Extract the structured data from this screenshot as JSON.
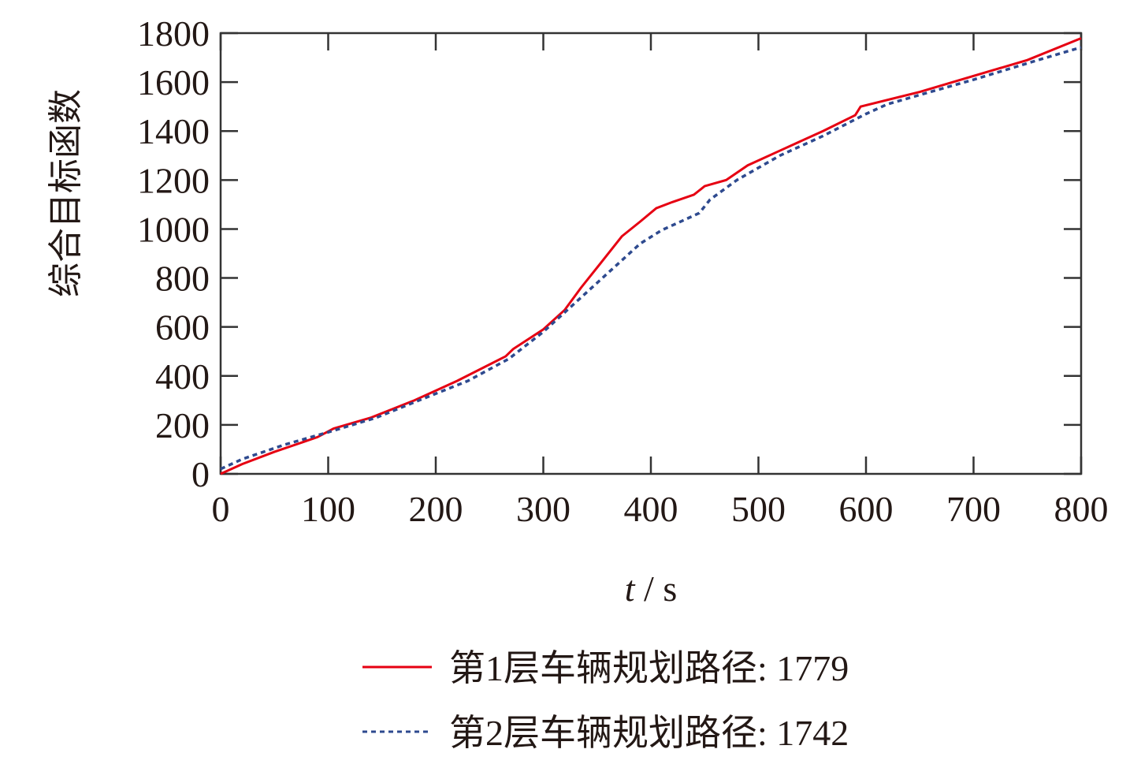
{
  "chart_data": {
    "type": "line",
    "title": "",
    "xlabel_italic": "t",
    "xlabel_rest": " / s",
    "ylabel": "综合目标函数",
    "xlim": [
      0,
      800
    ],
    "ylim": [
      0,
      1800
    ],
    "xticks": [
      0,
      100,
      200,
      300,
      400,
      500,
      600,
      700,
      800
    ],
    "yticks": [
      0,
      200,
      400,
      600,
      800,
      1000,
      1200,
      1400,
      1600,
      1800
    ],
    "grid": false,
    "legend_position": "bottom-center",
    "series": [
      {
        "name": "第1层车辆规划路径: 1779",
        "color": "#e60012",
        "style": "solid",
        "x": [
          0,
          20,
          50,
          90,
          105,
          140,
          180,
          220,
          265,
          272,
          300,
          320,
          335,
          355,
          373,
          390,
          405,
          420,
          440,
          450,
          470,
          490,
          520,
          560,
          590,
          595,
          650,
          700,
          750,
          800
        ],
        "y": [
          0,
          40,
          90,
          150,
          185,
          230,
          300,
          380,
          480,
          510,
          590,
          670,
          760,
          870,
          970,
          1030,
          1085,
          1110,
          1140,
          1175,
          1200,
          1260,
          1320,
          1400,
          1465,
          1500,
          1560,
          1625,
          1690,
          1779
        ]
      },
      {
        "name": "第2层车辆规划路径: 1742",
        "color": "#2e4a8f",
        "style": "dashed",
        "x": [
          0,
          20,
          60,
          100,
          145,
          190,
          230,
          268,
          300,
          320,
          345,
          370,
          390,
          410,
          445,
          455,
          480,
          520,
          560,
          600,
          620,
          700,
          760,
          800
        ],
        "y": [
          20,
          60,
          120,
          170,
          230,
          310,
          380,
          470,
          580,
          660,
          760,
          860,
          940,
          995,
          1065,
          1120,
          1200,
          1300,
          1380,
          1470,
          1510,
          1610,
          1690,
          1742
        ]
      }
    ]
  }
}
